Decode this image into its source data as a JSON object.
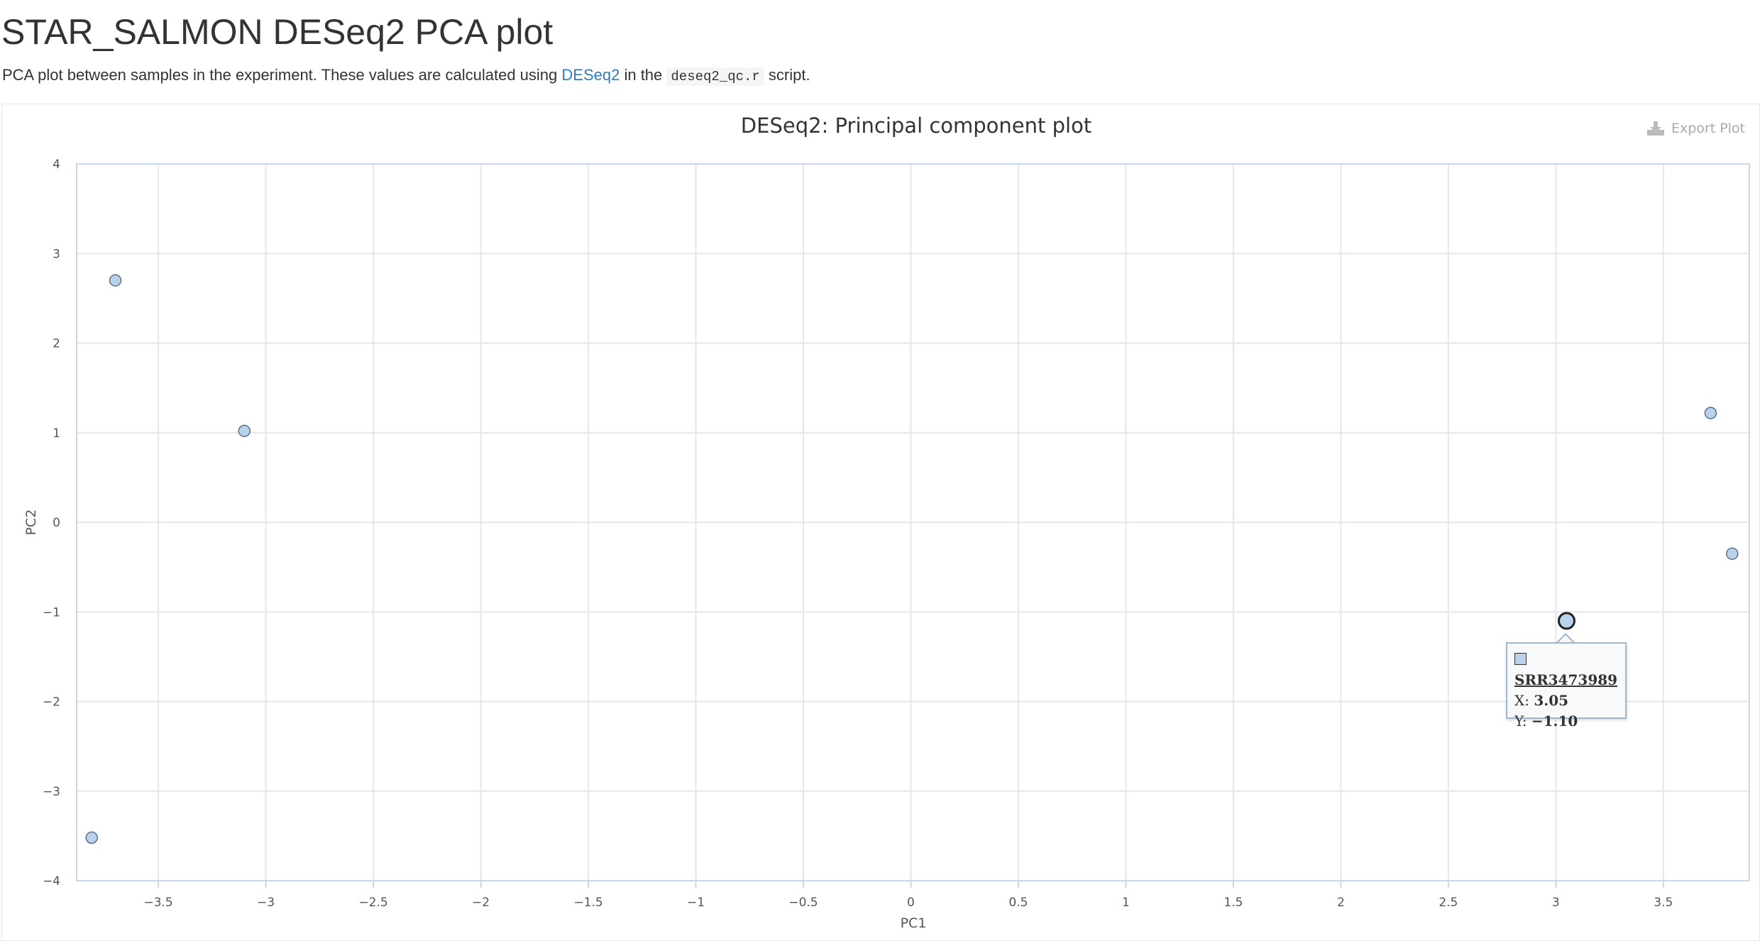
{
  "page": {
    "title": "STAR_SALMON DESeq2 PCA plot",
    "desc_pre": "PCA plot between samples in the experiment. These values are calculated using ",
    "desc_link": "DESeq2",
    "desc_mid": " in the ",
    "desc_code": "deseq2_qc.r",
    "desc_post": " script."
  },
  "toolbar": {
    "export_label": "Export Plot",
    "export_icon": "download-icon"
  },
  "tooltip": {
    "name": "SRR3473989",
    "x_label": "X:",
    "x_value": "3.05",
    "y_label": "Y:",
    "y_value": "−1.10"
  },
  "colors": {
    "point_fill": "#b8d2ec",
    "point_stroke": "#5a6f86",
    "grid": "#e6e6ec",
    "axis": "#ccd6eb"
  },
  "chart_data": {
    "type": "scatter",
    "title": "DESeq2: Principal component plot",
    "xlabel": "PC1",
    "ylabel": "PC2",
    "xlim": [
      -3.88,
      3.9
    ],
    "ylim": [
      -4,
      4
    ],
    "xticks": [
      -3.5,
      -3,
      -2.5,
      -2,
      -1.5,
      -1,
      -0.5,
      0,
      0.5,
      1,
      1.5,
      2,
      2.5,
      3,
      3.5
    ],
    "yticks": [
      -4,
      -3,
      -2,
      -1,
      0,
      1,
      2,
      3,
      4
    ],
    "grid": true,
    "points": [
      {
        "x": -3.7,
        "y": 2.7
      },
      {
        "x": -3.1,
        "y": 1.02
      },
      {
        "x": -3.81,
        "y": -3.52
      },
      {
        "x": 3.72,
        "y": 1.22
      },
      {
        "x": 3.82,
        "y": -0.35
      },
      {
        "x": 3.05,
        "y": -1.1,
        "name": "SRR3473989",
        "highlighted": true
      }
    ]
  }
}
